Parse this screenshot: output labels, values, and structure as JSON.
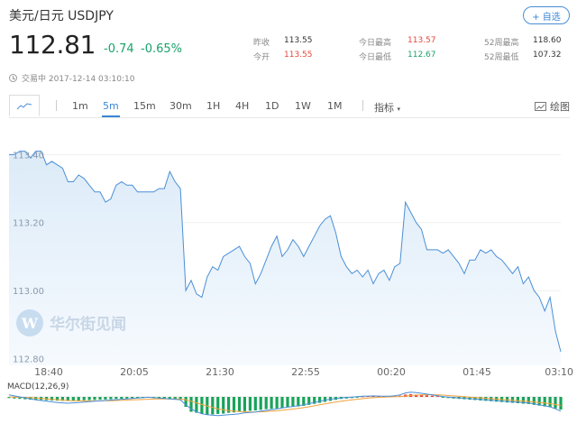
{
  "header": {
    "title": "美元/日元  USDJPY",
    "follow_label": "+ 自选",
    "price": "112.81",
    "change": "-0.74",
    "change_pct": "-0.65%",
    "status": "交易中 2017-12-14 03:10:10"
  },
  "stats": [
    {
      "label": "昨收",
      "value": "113.55",
      "color": "dark"
    },
    {
      "label": "今开",
      "value": "113.55",
      "color": "red"
    },
    {
      "label": "今日最高",
      "value": "113.57",
      "color": "red"
    },
    {
      "label": "今日最低",
      "value": "112.67",
      "color": "green"
    },
    {
      "label": "52周最高",
      "value": "118.60",
      "color": "dark"
    },
    {
      "label": "52周最低",
      "value": "107.32",
      "color": "dark"
    }
  ],
  "toolbar": {
    "periods": [
      "1m",
      "5m",
      "15m",
      "30m",
      "1H",
      "4H",
      "1D",
      "1W",
      "1M"
    ],
    "active_period": "5m",
    "indicator_label": "指标",
    "draw_label": "绘图"
  },
  "watermark": "华尔街见闻",
  "chart_data": {
    "type": "area",
    "y_tick_labels": [
      "113.40",
      "113.20",
      "113.00",
      "112.80"
    ],
    "ylim": [
      112.78,
      113.47
    ],
    "x_tick_labels": [
      "18:40",
      "20:05",
      "21:30",
      "22:55",
      "00:20",
      "01:45",
      "03:10"
    ],
    "values": [
      113.4,
      113.4,
      113.41,
      113.41,
      113.39,
      113.41,
      113.41,
      113.37,
      113.38,
      113.37,
      113.36,
      113.32,
      113.32,
      113.34,
      113.33,
      113.31,
      113.29,
      113.29,
      113.26,
      113.27,
      113.31,
      113.32,
      113.31,
      113.31,
      113.29,
      113.29,
      113.29,
      113.29,
      113.3,
      113.3,
      113.35,
      113.32,
      113.3,
      113.0,
      113.03,
      112.99,
      112.98,
      113.04,
      113.07,
      113.06,
      113.1,
      113.11,
      113.12,
      113.13,
      113.1,
      113.08,
      113.02,
      113.05,
      113.09,
      113.13,
      113.16,
      113.1,
      113.12,
      113.15,
      113.13,
      113.1,
      113.13,
      113.16,
      113.19,
      113.21,
      113.22,
      113.17,
      113.1,
      113.07,
      113.05,
      113.06,
      113.04,
      113.06,
      113.02,
      113.05,
      113.06,
      113.03,
      113.07,
      113.08,
      113.26,
      113.23,
      113.2,
      113.18,
      113.12,
      113.12,
      113.12,
      113.11,
      113.12,
      113.1,
      113.08,
      113.05,
      113.09,
      113.09,
      113.12,
      113.11,
      113.12,
      113.1,
      113.09,
      113.07,
      113.05,
      113.07,
      113.02,
      113.04,
      113.0,
      112.98,
      112.94,
      112.98,
      112.88,
      112.82
    ],
    "macd_label": "MACD(12,26,9)",
    "macd": {
      "hist": [
        -0.006,
        -0.008,
        -0.01,
        -0.012,
        -0.014,
        -0.016,
        -0.015,
        -0.017,
        -0.018,
        -0.019,
        -0.02,
        -0.021,
        -0.019,
        -0.018,
        -0.017,
        -0.016,
        -0.015,
        -0.014,
        -0.013,
        -0.012,
        -0.01,
        -0.009,
        -0.008,
        -0.007,
        -0.006,
        -0.005,
        -0.004,
        -0.006,
        -0.008,
        -0.01,
        -0.012,
        -0.014,
        -0.016,
        -0.05,
        -0.075,
        -0.08,
        -0.085,
        -0.09,
        -0.088,
        -0.086,
        -0.084,
        -0.08,
        -0.078,
        -0.075,
        -0.072,
        -0.07,
        -0.068,
        -0.065,
        -0.062,
        -0.06,
        -0.058,
        -0.055,
        -0.052,
        -0.05,
        -0.048,
        -0.045,
        -0.04,
        -0.035,
        -0.03,
        -0.025,
        -0.02,
        -0.015,
        -0.01,
        -0.008,
        -0.006,
        -0.004,
        0.002,
        0.004,
        0.006,
        0.005,
        0.003,
        0.002,
        0.004,
        0.006,
        0.012,
        0.014,
        0.012,
        0.01,
        0.008,
        0.006,
        0.004,
        -0.004,
        -0.006,
        -0.008,
        -0.01,
        -0.012,
        -0.014,
        -0.016,
        -0.018,
        -0.02,
        -0.022,
        -0.024,
        -0.026,
        -0.028,
        -0.03,
        -0.032,
        -0.034,
        -0.036,
        -0.04,
        -0.044,
        -0.048,
        -0.052,
        -0.058,
        -0.064
      ],
      "dif": [
        0.01,
        0.005,
        0.0,
        -0.005,
        -0.01,
        -0.015,
        -0.018,
        -0.022,
        -0.025,
        -0.028,
        -0.03,
        -0.032,
        -0.03,
        -0.028,
        -0.026,
        -0.024,
        -0.022,
        -0.02,
        -0.018,
        -0.016,
        -0.014,
        -0.012,
        -0.01,
        -0.008,
        -0.006,
        -0.004,
        -0.002,
        -0.004,
        -0.006,
        -0.008,
        -0.01,
        -0.012,
        -0.015,
        -0.04,
        -0.06,
        -0.075,
        -0.085,
        -0.09,
        -0.092,
        -0.094,
        -0.092,
        -0.09,
        -0.088,
        -0.085,
        -0.08,
        -0.078,
        -0.076,
        -0.072,
        -0.068,
        -0.064,
        -0.06,
        -0.056,
        -0.052,
        -0.048,
        -0.044,
        -0.04,
        -0.034,
        -0.028,
        -0.022,
        -0.016,
        -0.012,
        -0.008,
        -0.005,
        -0.003,
        -0.001,
        0.001,
        0.003,
        0.004,
        0.005,
        0.004,
        0.003,
        0.003,
        0.006,
        0.01,
        0.02,
        0.024,
        0.022,
        0.018,
        0.014,
        0.01,
        0.006,
        0.002,
        -0.001,
        -0.003,
        -0.005,
        -0.007,
        -0.009,
        -0.011,
        -0.013,
        -0.015,
        -0.017,
        -0.019,
        -0.021,
        -0.023,
        -0.025,
        -0.027,
        -0.029,
        -0.031,
        -0.035,
        -0.04,
        -0.045,
        -0.05,
        -0.06,
        -0.072
      ],
      "dea": [
        0.0,
        -0.001,
        -0.002,
        -0.003,
        -0.004,
        -0.006,
        -0.008,
        -0.01,
        -0.012,
        -0.014,
        -0.016,
        -0.018,
        -0.019,
        -0.02,
        -0.02,
        -0.02,
        -0.02,
        -0.02,
        -0.019,
        -0.019,
        -0.018,
        -0.017,
        -0.016,
        -0.015,
        -0.014,
        -0.013,
        -0.012,
        -0.011,
        -0.01,
        -0.01,
        -0.01,
        -0.01,
        -0.011,
        -0.015,
        -0.022,
        -0.03,
        -0.038,
        -0.046,
        -0.053,
        -0.06,
        -0.065,
        -0.069,
        -0.072,
        -0.074,
        -0.075,
        -0.076,
        -0.076,
        -0.075,
        -0.074,
        -0.072,
        -0.07,
        -0.067,
        -0.064,
        -0.061,
        -0.058,
        -0.054,
        -0.05,
        -0.045,
        -0.04,
        -0.035,
        -0.03,
        -0.026,
        -0.022,
        -0.018,
        -0.015,
        -0.012,
        -0.009,
        -0.006,
        -0.004,
        -0.002,
        -0.001,
        0.0,
        0.001,
        0.002,
        0.004,
        0.007,
        0.009,
        0.01,
        0.011,
        0.011,
        0.01,
        0.009,
        0.007,
        0.005,
        0.003,
        0.001,
        -0.001,
        -0.003,
        -0.005,
        -0.007,
        -0.009,
        -0.011,
        -0.013,
        -0.015,
        -0.017,
        -0.019,
        -0.021,
        -0.023,
        -0.025,
        -0.028,
        -0.031,
        -0.034,
        -0.038,
        -0.043
      ]
    }
  },
  "colors": {
    "line": "#4a8fd6",
    "area_top": "#dcebf8",
    "area_bottom": "#f6fafe",
    "down": "#19a35a",
    "up": "#e8463b",
    "dif": "#4a8fd6",
    "dea": "#f3a23c"
  }
}
